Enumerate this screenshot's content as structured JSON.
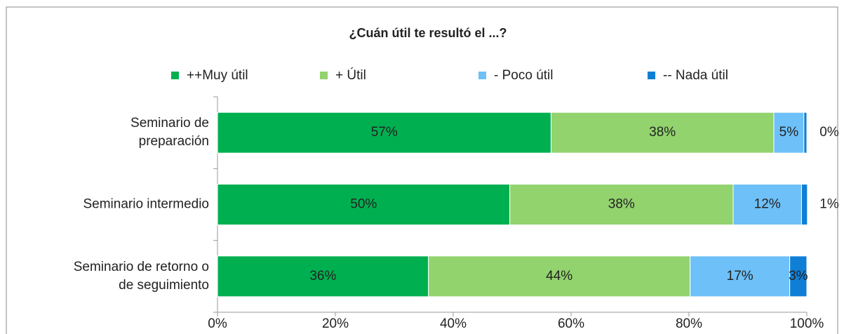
{
  "chart_data": {
    "type": "stacked_bar_horizontal",
    "title": "¿Cuán útil te resultó el ...?",
    "categories": [
      "Seminario de\npreparación",
      "Seminario intermedio",
      "Seminario de retorno o\nde seguimiento"
    ],
    "series": [
      {
        "name": "++Muy útil",
        "color": "#00b050",
        "values": [
          56.6,
          49.6,
          35.8
        ],
        "value_labels": [
          "57%",
          "50%",
          "36%"
        ]
      },
      {
        "name": "+ Útil",
        "color": "#92d36e",
        "values": [
          37.8,
          37.9,
          44.4
        ],
        "value_labels": [
          "38%",
          "38%",
          "44%"
        ]
      },
      {
        "name": "- Poco útil",
        "color": "#6ec0f8",
        "values": [
          5.1,
          11.6,
          16.9
        ],
        "value_labels": [
          "5%",
          "12%",
          "17%"
        ]
      },
      {
        "name": "-- Nada útil",
        "color": "#0f7fd6",
        "values": [
          0.5,
          1.0,
          2.9
        ],
        "value_labels": [
          "0%",
          "1%",
          "3%"
        ]
      }
    ],
    "xlim": [
      0,
      100
    ],
    "xticks": [
      {
        "value": 0,
        "label": "0%"
      },
      {
        "value": 20,
        "label": "20%"
      },
      {
        "value": 40,
        "label": "40%"
      },
      {
        "value": 60,
        "label": "60%"
      },
      {
        "value": 80,
        "label": "80%"
      },
      {
        "value": 100,
        "label": "100%"
      }
    ],
    "legend": "top"
  }
}
